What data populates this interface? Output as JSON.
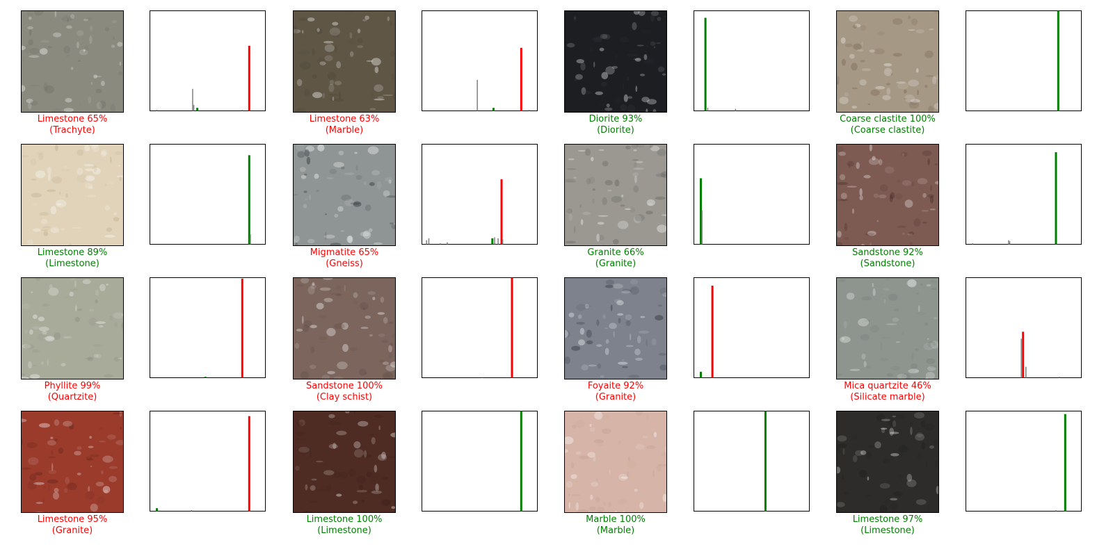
{
  "colors": {
    "correct": "#008000",
    "wrong": "#ff0000",
    "other": "#808080"
  },
  "samples": [
    {
      "predicted": "Limestone 65%",
      "actual": "(Trachyte)",
      "correct": false,
      "base": "#8a8a7f",
      "spot": "#6a6a62",
      "hist": [
        {
          "x": 0.06,
          "p": 0.01,
          "c": "other"
        },
        {
          "x": 0.37,
          "p": 0.22,
          "c": "other"
        },
        {
          "x": 0.38,
          "p": 0.06,
          "c": "other"
        },
        {
          "x": 0.41,
          "p": 0.03,
          "c": "correct"
        },
        {
          "x": 0.8,
          "p": 0.01,
          "c": "other"
        },
        {
          "x": 0.86,
          "p": 0.65,
          "c": "wrong"
        }
      ]
    },
    {
      "predicted": "Limestone 63%",
      "actual": "(Marble)",
      "correct": false,
      "base": "#5f5646",
      "spot": "#4a4336",
      "hist": [
        {
          "x": 0.48,
          "p": 0.31,
          "c": "other"
        },
        {
          "x": 0.62,
          "p": 0.03,
          "c": "correct"
        },
        {
          "x": 0.86,
          "p": 0.63,
          "c": "wrong"
        },
        {
          "x": 0.93,
          "p": 0.01,
          "c": "other"
        }
      ]
    },
    {
      "predicted": "Diorite 93%",
      "actual": "(Diorite)",
      "correct": true,
      "base": "#1c1e22",
      "spot": "#33373c",
      "hist": [
        {
          "x": 0.1,
          "p": 0.93,
          "c": "correct"
        },
        {
          "x": 0.12,
          "p": 0.03,
          "c": "other"
        },
        {
          "x": 0.36,
          "p": 0.02,
          "c": "other"
        }
      ]
    },
    {
      "predicted": "Coarse clastite 100%",
      "actual": "(Coarse clastite)",
      "correct": true,
      "base": "#a59885",
      "spot": "#6f5a48",
      "hist": [
        {
          "x": 0.8,
          "p": 1.0,
          "c": "correct"
        }
      ]
    },
    {
      "predicted": "Limestone 89%",
      "actual": "(Limestone)",
      "correct": true,
      "base": "#e0d3b9",
      "spot": "#b9a888",
      "hist": [
        {
          "x": 0.86,
          "p": 0.89,
          "c": "correct"
        },
        {
          "x": 0.87,
          "p": 0.1,
          "c": "other"
        }
      ]
    },
    {
      "predicted": "Migmatite 65%",
      "actual": "(Gneiss)",
      "correct": false,
      "base": "#8f9594",
      "spot": "#1b1f25",
      "hist": [
        {
          "x": 0.04,
          "p": 0.04,
          "c": "other"
        },
        {
          "x": 0.06,
          "p": 0.06,
          "c": "other"
        },
        {
          "x": 0.16,
          "p": 0.01,
          "c": "other"
        },
        {
          "x": 0.22,
          "p": 0.02,
          "c": "other"
        },
        {
          "x": 0.61,
          "p": 0.06,
          "c": "correct"
        },
        {
          "x": 0.63,
          "p": 0.07,
          "c": "other"
        },
        {
          "x": 0.66,
          "p": 0.06,
          "c": "other"
        },
        {
          "x": 0.69,
          "p": 0.65,
          "c": "wrong"
        },
        {
          "x": 0.7,
          "p": 0.05,
          "c": "other"
        }
      ]
    },
    {
      "predicted": "Granite 66%",
      "actual": "(Granite)",
      "correct": true,
      "base": "#9a9891",
      "spot": "#5c5b57",
      "hist": [
        {
          "x": 0.06,
          "p": 0.66,
          "c": "correct"
        },
        {
          "x": 0.07,
          "p": 0.34,
          "c": "other"
        }
      ]
    },
    {
      "predicted": "Sandstone 92%",
      "actual": "(Sandstone)",
      "correct": true,
      "base": "#7d5a52",
      "spot": "#3e2a25",
      "hist": [
        {
          "x": 0.06,
          "p": 0.01,
          "c": "other"
        },
        {
          "x": 0.37,
          "p": 0.04,
          "c": "other"
        },
        {
          "x": 0.38,
          "p": 0.03,
          "c": "other"
        },
        {
          "x": 0.78,
          "p": 0.92,
          "c": "correct"
        }
      ]
    },
    {
      "predicted": "Phyllite 99%",
      "actual": "(Quartzite)",
      "correct": false,
      "base": "#a8aa9a",
      "spot": "#85887a",
      "hist": [
        {
          "x": 0.48,
          "p": 0.01,
          "c": "correct"
        },
        {
          "x": 0.8,
          "p": 0.99,
          "c": "wrong"
        }
      ]
    },
    {
      "predicted": "Sandstone 100%",
      "actual": "(Clay schist)",
      "correct": false,
      "base": "#7b655d",
      "spot": "#5e4a43",
      "hist": [
        {
          "x": 0.52,
          "p": 0.005,
          "c": "other"
        },
        {
          "x": 0.78,
          "p": 1.0,
          "c": "wrong"
        }
      ]
    },
    {
      "predicted": "Foyaite 92%",
      "actual": "(Granite)",
      "correct": false,
      "base": "#7d828d",
      "spot": "#1f2228",
      "hist": [
        {
          "x": 0.06,
          "p": 0.06,
          "c": "correct"
        },
        {
          "x": 0.16,
          "p": 0.92,
          "c": "wrong"
        }
      ]
    },
    {
      "predicted": "Mica quartzite 46%",
      "actual": "(Silicate marble)",
      "correct": false,
      "base": "#8e958f",
      "spot": "#737a75",
      "hist": [
        {
          "x": 0.48,
          "p": 0.39,
          "c": "other"
        },
        {
          "x": 0.495,
          "p": 0.46,
          "c": "wrong"
        },
        {
          "x": 0.52,
          "p": 0.11,
          "c": "other"
        },
        {
          "x": 0.81,
          "p": 0.01,
          "c": "other"
        }
      ]
    },
    {
      "predicted": "Limestone 95%",
      "actual": "(Granite)",
      "correct": false,
      "base": "#9a3b2c",
      "spot": "#5d2119",
      "hist": [
        {
          "x": 0.06,
          "p": 0.03,
          "c": "correct"
        },
        {
          "x": 0.36,
          "p": 0.01,
          "c": "other"
        },
        {
          "x": 0.86,
          "p": 0.95,
          "c": "wrong"
        }
      ]
    },
    {
      "predicted": "Limestone 100%",
      "actual": "(Limestone)",
      "correct": true,
      "base": "#4e2c23",
      "spot": "#3a1f18",
      "hist": [
        {
          "x": 0.86,
          "p": 1.0,
          "c": "correct"
        }
      ]
    },
    {
      "predicted": "Marble 100%",
      "actual": "(Marble)",
      "correct": true,
      "base": "#d6b5a8",
      "spot": "#bf9c8f",
      "hist": [
        {
          "x": 0.62,
          "p": 1.0,
          "c": "correct"
        }
      ]
    },
    {
      "predicted": "Limestone 97%",
      "actual": "(Limestone)",
      "correct": true,
      "base": "#2d2c2a",
      "spot": "#1e1d1c",
      "hist": [
        {
          "x": 0.78,
          "p": 0.01,
          "c": "other"
        },
        {
          "x": 0.86,
          "p": 0.97,
          "c": "correct"
        }
      ]
    }
  ],
  "chart_data": {
    "type": "bar",
    "description_scope": "Per-sample class probability histograms; x is class position (0-1 across classes), y is probability (0-1). Correct class drawn in green when predicted correctly, predicted class in red when wrong.",
    "ylim": [
      0,
      1
    ],
    "series": [
      {
        "name": "Limestone 65% (Trachyte)",
        "values": [
          0.01,
          0.22,
          0.06,
          0.03,
          0.01,
          0.65
        ]
      },
      {
        "name": "Limestone 63% (Marble)",
        "values": [
          0.31,
          0.03,
          0.63,
          0.01
        ]
      },
      {
        "name": "Diorite 93% (Diorite)",
        "values": [
          0.93,
          0.03,
          0.02
        ]
      },
      {
        "name": "Coarse clastite 100% (Coarse clastite)",
        "values": [
          1.0
        ]
      },
      {
        "name": "Limestone 89% (Limestone)",
        "values": [
          0.89,
          0.1
        ]
      },
      {
        "name": "Migmatite 65% (Gneiss)",
        "values": [
          0.04,
          0.06,
          0.01,
          0.02,
          0.06,
          0.07,
          0.06,
          0.65,
          0.05
        ]
      },
      {
        "name": "Granite 66% (Granite)",
        "values": [
          0.66,
          0.34
        ]
      },
      {
        "name": "Sandstone 92% (Sandstone)",
        "values": [
          0.01,
          0.04,
          0.03,
          0.92
        ]
      },
      {
        "name": "Phyllite 99% (Quartzite)",
        "values": [
          0.01,
          0.99
        ]
      },
      {
        "name": "Sandstone 100% (Clay schist)",
        "values": [
          0.005,
          1.0
        ]
      },
      {
        "name": "Foyaite 92% (Granite)",
        "values": [
          0.06,
          0.92
        ]
      },
      {
        "name": "Mica quartzite 46% (Silicate marble)",
        "values": [
          0.39,
          0.46,
          0.11,
          0.01
        ]
      },
      {
        "name": "Limestone 95% (Granite)",
        "values": [
          0.03,
          0.01,
          0.95
        ]
      },
      {
        "name": "Limestone 100% (Limestone)",
        "values": [
          1.0
        ]
      },
      {
        "name": "Marble 100% (Marble)",
        "values": [
          1.0
        ]
      },
      {
        "name": "Limestone 97% (Limestone)",
        "values": [
          0.01,
          0.97
        ]
      }
    ]
  }
}
